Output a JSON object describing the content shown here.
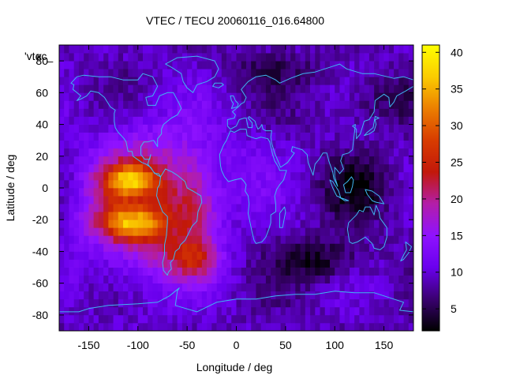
{
  "chart_data": {
    "type": "heatmap",
    "title": "VTEC / TECU 20060116_016.64800",
    "xlabel": "Longitude / deg",
    "ylabel": "Latitude / deg",
    "legend_entry": "'vtec_",
    "legend_entry_overlap": "x",
    "xlim": [
      -180,
      180
    ],
    "ylim": [
      -90,
      90
    ],
    "xticks": [
      -150,
      -100,
      -50,
      0,
      50,
      100,
      150
    ],
    "yticks": [
      -80,
      -60,
      -40,
      -20,
      0,
      20,
      40,
      60,
      80
    ],
    "xtick_labels": [
      "-150",
      "-100",
      "-50",
      "0",
      "50",
      "100",
      "150"
    ],
    "ytick_labels": [
      "-80",
      "-60",
      "-40",
      "-20",
      "0",
      "20",
      "40",
      "60",
      "80"
    ],
    "grid_resolution_deg": 5,
    "colorbar": {
      "min": 2,
      "max": 41,
      "ticks": [
        5,
        10,
        15,
        20,
        25,
        30,
        35,
        40
      ],
      "tick_labels": [
        "5",
        "10",
        "15",
        "20",
        "25",
        "30",
        "35",
        "40"
      ],
      "colormap": [
        "#000000",
        "#3a0070",
        "#6a00ee",
        "#8f12ff",
        "#b31ea8",
        "#c2180a",
        "#d83c00",
        "#ec7f00",
        "#fbcc00",
        "#ffff00"
      ]
    },
    "features": [
      {
        "name": "background",
        "vtec": 9
      },
      {
        "name": "equatorial-anomaly-north-crest",
        "lon": -110,
        "lat": 5,
        "peak_vtec": 41
      },
      {
        "name": "equatorial-anomaly-south-crest",
        "lon": -108,
        "lat": -22,
        "peak_vtec": 41
      },
      {
        "name": "dayside-enhancement-center",
        "lon": -90,
        "lat": -10,
        "vtec": 26
      },
      {
        "name": "midlatitude-trough-south-atlantic",
        "lon": 90,
        "lat": -45,
        "vtec": 3
      },
      {
        "name": "low-tec-east-asia",
        "lon": 120,
        "lat": 0,
        "vtec": 4
      }
    ],
    "coastline_color": "#3fb6f2",
    "frame_color": "#000000"
  }
}
